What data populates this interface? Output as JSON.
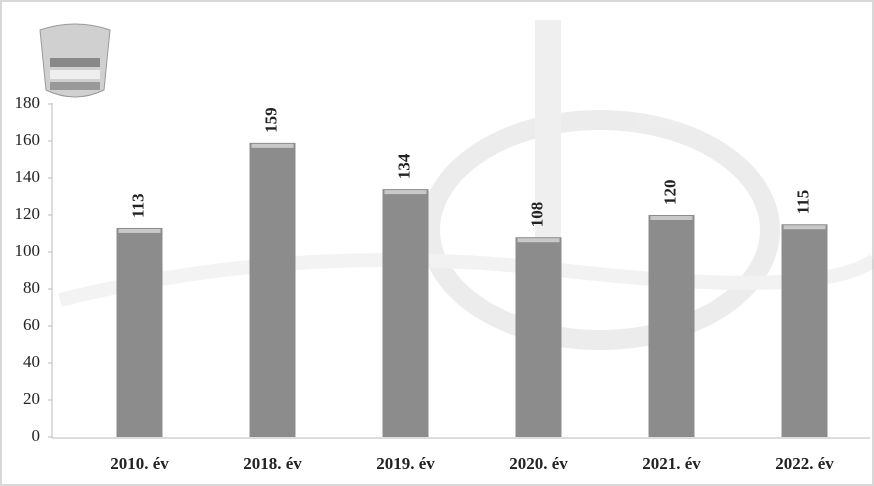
{
  "chart_data": {
    "type": "bar",
    "categories": [
      "2010. év",
      "2018. év",
      "2019. év",
      "2020. év",
      "2021. év",
      "2022. év"
    ],
    "values": [
      113,
      159,
      134,
      108,
      120,
      115
    ],
    "color": "#8c8c8c",
    "ylim": [
      0,
      180
    ],
    "yticks": [
      0,
      20,
      40,
      60,
      80,
      100,
      120,
      140,
      160,
      180
    ]
  }
}
